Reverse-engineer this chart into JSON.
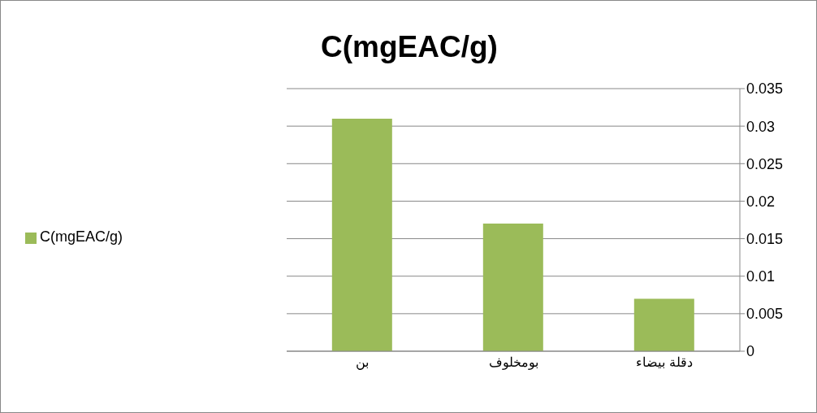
{
  "chart_data": {
    "type": "bar",
    "title": "C(mgEAC/g)",
    "categories": [
      "بن",
      "بومخلوف",
      "دقلة بيضاء"
    ],
    "series": [
      {
        "name": "C(mgEAC/g)",
        "color": "#9bbb59",
        "values": [
          0.031,
          0.017,
          0.007
        ]
      }
    ],
    "ylim": [
      0,
      0.035
    ],
    "yticks": [
      0,
      0.005,
      0.01,
      0.015,
      0.02,
      0.025,
      0.03,
      0.035
    ],
    "grid": "y",
    "legend": "left"
  }
}
